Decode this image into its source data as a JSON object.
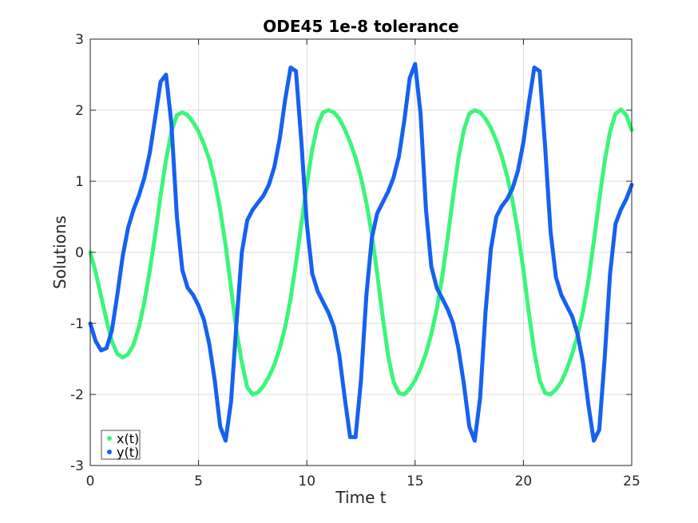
{
  "chart_data": {
    "type": "scatter",
    "title": "ODE45 1e-8 tolerance",
    "xlabel": "Time t",
    "ylabel": "Solutions",
    "xlim": [
      0,
      25
    ],
    "ylim": [
      -3,
      3
    ],
    "xticks": [
      "0",
      "5",
      "10",
      "15",
      "20",
      "25"
    ],
    "yticks": [
      "-3",
      "-2",
      "-1",
      "0",
      "1",
      "2",
      "3"
    ],
    "xtick_values": [
      0,
      5,
      10,
      15,
      20,
      25
    ],
    "ytick_values": [
      -3,
      -2,
      -1,
      0,
      1,
      2,
      3
    ],
    "grid": true,
    "legend_placement": "bottom-left",
    "series": [
      {
        "name": "x(t)",
        "color": "#3cf57a",
        "x": [
          0,
          0.25,
          0.5,
          0.75,
          1.0,
          1.25,
          1.5,
          1.75,
          2.0,
          2.25,
          2.5,
          2.75,
          3.0,
          3.25,
          3.5,
          3.75,
          4.0,
          4.25,
          4.5,
          4.75,
          5.0,
          5.25,
          5.5,
          5.75,
          6.0,
          6.25,
          6.5,
          6.75,
          7.0,
          7.25,
          7.5,
          7.75,
          8.0,
          8.25,
          8.5,
          8.75,
          9.0,
          9.25,
          9.5,
          9.75,
          10.0,
          10.25,
          10.5,
          10.75,
          11.0,
          11.25,
          11.5,
          11.75,
          12.0,
          12.25,
          12.5,
          12.75,
          13.0,
          13.25,
          13.5,
          13.75,
          14.0,
          14.25,
          14.5,
          14.75,
          15.0,
          15.25,
          15.5,
          15.75,
          16.0,
          16.25,
          16.5,
          16.75,
          17.0,
          17.25,
          17.5,
          17.75,
          18.0,
          18.25,
          18.5,
          18.75,
          19.0,
          19.25,
          19.5,
          19.75,
          20.0,
          20.25,
          20.5,
          20.75,
          21.0,
          21.25,
          21.5,
          21.75,
          22.0,
          22.25,
          22.5,
          22.75,
          23.0,
          23.25,
          23.5,
          23.75,
          24.0,
          24.25,
          24.5,
          24.75,
          25.0
        ],
        "y": [
          0.0,
          -0.28,
          -0.62,
          -0.95,
          -1.25,
          -1.43,
          -1.48,
          -1.43,
          -1.3,
          -1.05,
          -0.7,
          -0.25,
          0.25,
          0.8,
          1.3,
          1.7,
          1.93,
          1.97,
          1.93,
          1.83,
          1.7,
          1.52,
          1.3,
          1.0,
          0.6,
          0.1,
          -0.5,
          -1.1,
          -1.55,
          -1.9,
          -2.0,
          -1.97,
          -1.88,
          -1.75,
          -1.58,
          -1.35,
          -1.05,
          -0.65,
          -0.15,
          0.4,
          0.95,
          1.45,
          1.8,
          1.97,
          2.0,
          1.97,
          1.88,
          1.73,
          1.55,
          1.33,
          1.05,
          0.7,
          0.25,
          -0.3,
          -0.9,
          -1.45,
          -1.82,
          -1.98,
          -2.0,
          -1.92,
          -1.8,
          -1.63,
          -1.42,
          -1.15,
          -0.8,
          -0.35,
          0.2,
          0.78,
          1.32,
          1.72,
          1.95,
          2.0,
          1.97,
          1.88,
          1.75,
          1.57,
          1.35,
          1.07,
          0.72,
          0.28,
          -0.25,
          -0.85,
          -1.4,
          -1.8,
          -1.98,
          -2.0,
          -1.93,
          -1.82,
          -1.65,
          -1.43,
          -1.17,
          -0.83,
          -0.4,
          0.15,
          0.73,
          1.28,
          1.7,
          1.95,
          2.01,
          1.93,
          1.72
        ]
      },
      {
        "name": "y(t)",
        "color": "#1661f0",
        "x": [
          0,
          0.25,
          0.5,
          0.75,
          1.0,
          1.25,
          1.5,
          1.75,
          2.0,
          2.25,
          2.5,
          2.75,
          3.0,
          3.25,
          3.5,
          3.75,
          4.0,
          4.25,
          4.5,
          4.75,
          5.0,
          5.25,
          5.5,
          5.75,
          6.0,
          6.25,
          6.5,
          6.75,
          7.0,
          7.25,
          7.5,
          7.75,
          8.0,
          8.25,
          8.5,
          8.75,
          9.0,
          9.25,
          9.5,
          9.75,
          10.0,
          10.25,
          10.5,
          10.75,
          11.0,
          11.25,
          11.5,
          11.75,
          12.0,
          12.25,
          12.5,
          12.75,
          13.0,
          13.25,
          13.5,
          13.75,
          14.0,
          14.25,
          14.5,
          14.75,
          15.0,
          15.25,
          15.5,
          15.75,
          16.0,
          16.25,
          16.5,
          16.75,
          17.0,
          17.25,
          17.5,
          17.75,
          18.0,
          18.25,
          18.5,
          18.75,
          19.0,
          19.25,
          19.5,
          19.75,
          20.0,
          20.25,
          20.5,
          20.75,
          21.0,
          21.25,
          21.5,
          21.75,
          22.0,
          22.25,
          22.5,
          22.75,
          23.0,
          23.25,
          23.5,
          23.75,
          24.0,
          24.25,
          24.5,
          24.75,
          25.0
        ],
        "y": [
          -1.0,
          -1.25,
          -1.38,
          -1.35,
          -1.1,
          -0.6,
          -0.05,
          0.35,
          0.6,
          0.8,
          1.05,
          1.4,
          1.9,
          2.4,
          2.5,
          1.8,
          0.5,
          -0.25,
          -0.5,
          -0.6,
          -0.75,
          -0.95,
          -1.3,
          -1.8,
          -2.45,
          -2.65,
          -2.1,
          -1.0,
          0.0,
          0.45,
          0.6,
          0.7,
          0.8,
          0.95,
          1.2,
          1.6,
          2.15,
          2.6,
          2.55,
          1.55,
          0.4,
          -0.3,
          -0.55,
          -0.7,
          -0.85,
          -1.05,
          -1.45,
          -2.05,
          -2.6,
          -2.6,
          -1.8,
          -0.6,
          0.2,
          0.55,
          0.7,
          0.85,
          1.05,
          1.35,
          1.85,
          2.45,
          2.65,
          1.95,
          0.6,
          -0.2,
          -0.5,
          -0.65,
          -0.8,
          -1.0,
          -1.35,
          -1.85,
          -2.45,
          -2.65,
          -2.05,
          -0.85,
          0.05,
          0.5,
          0.65,
          0.75,
          0.9,
          1.15,
          1.55,
          2.1,
          2.6,
          2.55,
          1.5,
          0.3,
          -0.35,
          -0.6,
          -0.75,
          -0.9,
          -1.15,
          -1.55,
          -2.15,
          -2.65,
          -2.5,
          -1.5,
          -0.3,
          0.4,
          0.6,
          0.75,
          0.95
        ]
      }
    ]
  }
}
